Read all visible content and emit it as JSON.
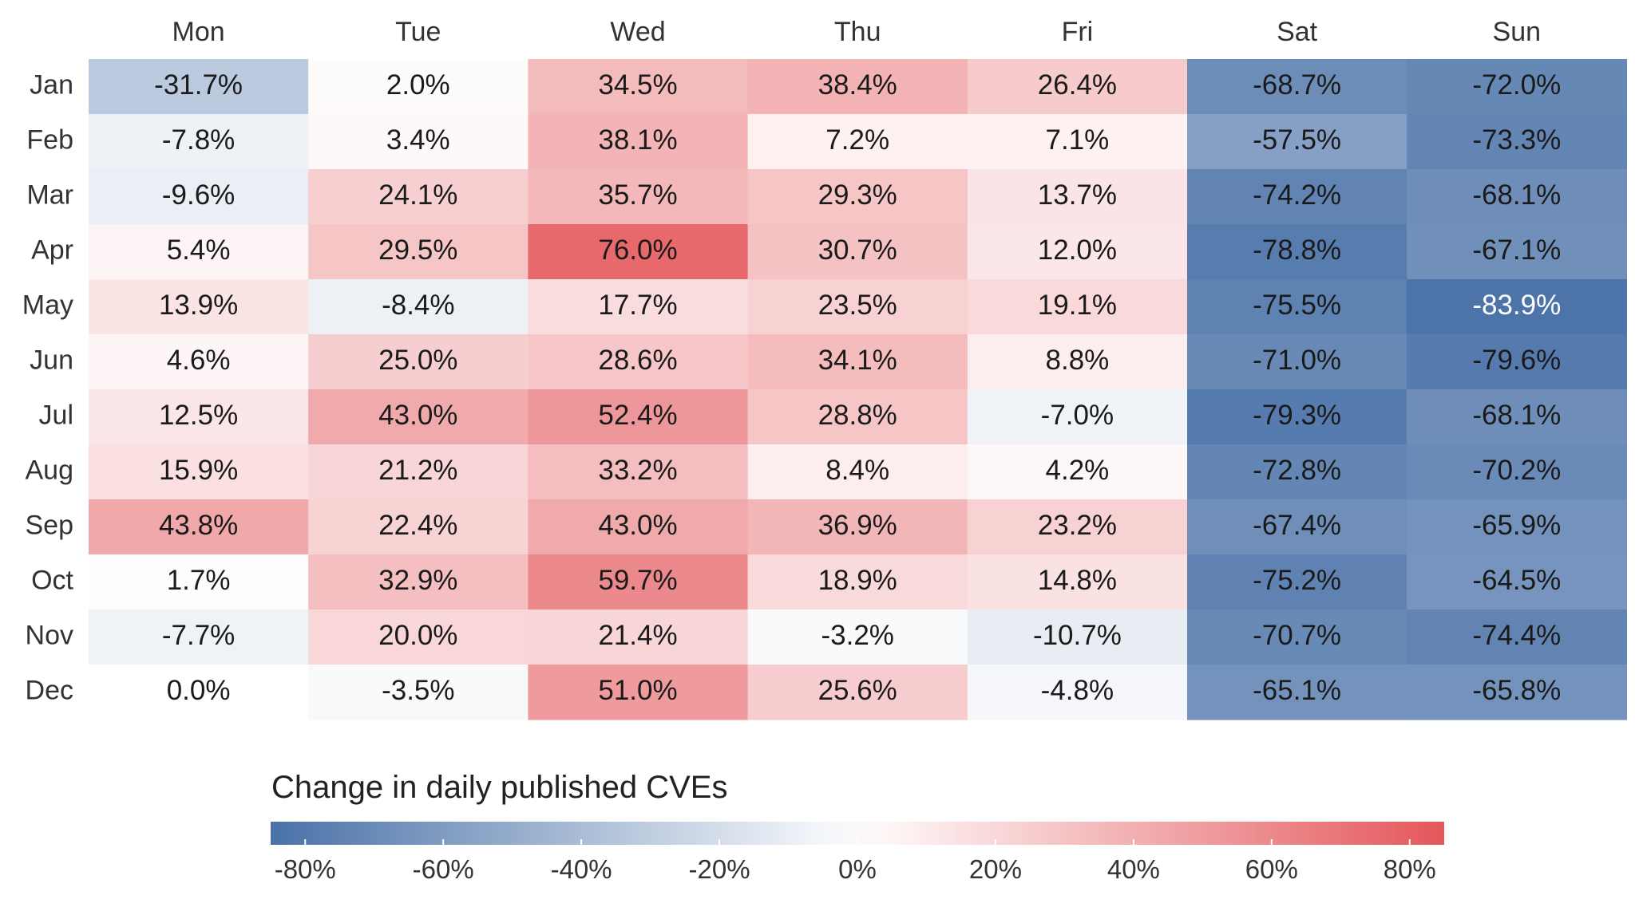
{
  "chart_data": {
    "type": "heatmap",
    "title": "",
    "xlabel": "",
    "ylabel": "",
    "columns": [
      "Mon",
      "Tue",
      "Wed",
      "Thu",
      "Fri",
      "Sat",
      "Sun"
    ],
    "rows": [
      "Jan",
      "Feb",
      "Mar",
      "Apr",
      "May",
      "Jun",
      "Jul",
      "Aug",
      "Sep",
      "Oct",
      "Nov",
      "Dec"
    ],
    "values": [
      [
        -31.7,
        2.0,
        34.5,
        38.4,
        26.4,
        -68.7,
        -72.0
      ],
      [
        -7.8,
        3.4,
        38.1,
        7.2,
        7.1,
        -57.5,
        -73.3
      ],
      [
        -9.6,
        24.1,
        35.7,
        29.3,
        13.7,
        -74.2,
        -68.1
      ],
      [
        5.4,
        29.5,
        76.0,
        30.7,
        12.0,
        -78.8,
        -67.1
      ],
      [
        13.9,
        -8.4,
        17.7,
        23.5,
        19.1,
        -75.5,
        -83.9
      ],
      [
        4.6,
        25.0,
        28.6,
        34.1,
        8.8,
        -71.0,
        -79.6
      ],
      [
        12.5,
        43.0,
        52.4,
        28.8,
        -7.0,
        -79.3,
        -68.1
      ],
      [
        15.9,
        21.2,
        33.2,
        8.4,
        4.2,
        -72.8,
        -70.2
      ],
      [
        43.8,
        22.4,
        43.0,
        36.9,
        23.2,
        -67.4,
        -65.9
      ],
      [
        1.7,
        32.9,
        59.7,
        18.9,
        14.8,
        -75.2,
        -64.5
      ],
      [
        -7.7,
        20.0,
        21.4,
        -3.2,
        -10.7,
        -70.7,
        -74.4
      ],
      [
        0.0,
        -3.5,
        51.0,
        25.6,
        -4.8,
        -65.1,
        -65.8
      ]
    ],
    "value_suffix": "%",
    "colorscale": {
      "title": "Change in daily published CVEs",
      "min": -85,
      "max": 85,
      "low_color": "#4a72a8",
      "mid_color": "#ffffff",
      "high_color": "#e4575b",
      "ticks": [
        -80,
        -60,
        -40,
        -20,
        0,
        20,
        40,
        60,
        80
      ],
      "tick_labels": [
        "-80%",
        "-60%",
        "-40%",
        "-20%",
        "0%",
        "20%",
        "40%",
        "60%",
        "80%"
      ]
    },
    "grid": false,
    "legend_position": "bottom"
  }
}
